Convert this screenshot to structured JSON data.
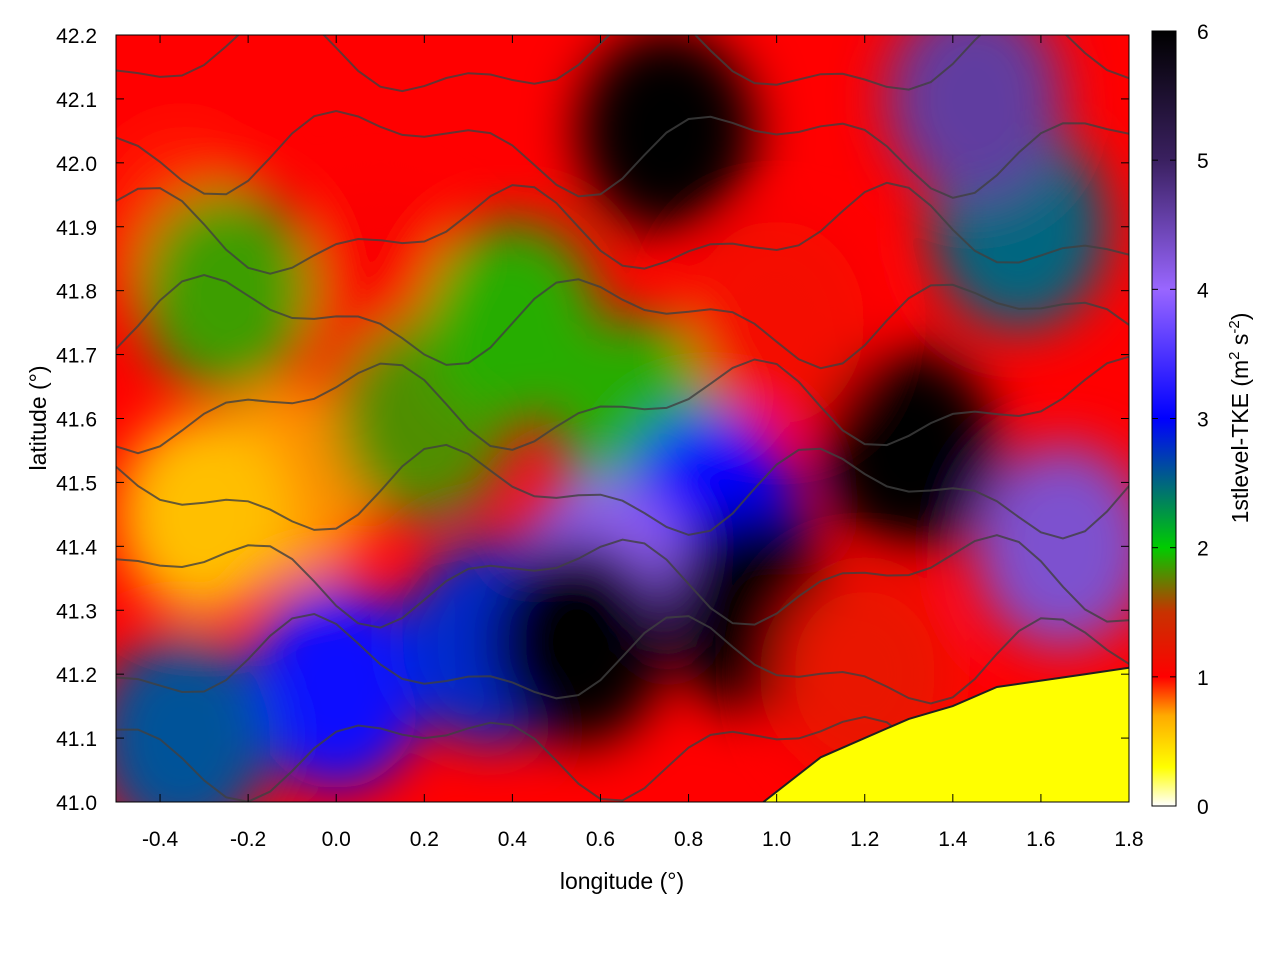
{
  "chart_data": {
    "type": "heatmap",
    "title": "",
    "xlabel": "longitude (°)",
    "ylabel": "latitude (°)",
    "colorbar_label_parts": [
      "1stlevel-TKE (m",
      "2",
      " s",
      "-2",
      ")"
    ],
    "xlim": [
      -0.5,
      1.8
    ],
    "ylim": [
      41.0,
      42.2
    ],
    "x_ticks": [
      -0.4,
      -0.2,
      0.0,
      0.2,
      0.4,
      0.6,
      0.8,
      1.0,
      1.2,
      1.4,
      1.6,
      1.8
    ],
    "x_tick_labels": [
      "-0.4",
      "-0.2",
      "0.0",
      "0.2",
      "0.4",
      "0.6",
      "0.8",
      "1.0",
      "1.2",
      "1.4",
      "1.6",
      "1.8"
    ],
    "y_ticks": [
      41.0,
      41.1,
      41.2,
      41.3,
      41.4,
      41.5,
      41.6,
      41.7,
      41.8,
      41.9,
      42.0,
      42.1,
      42.2
    ],
    "y_tick_labels": [
      "41.0",
      "41.1",
      "41.2",
      "41.3",
      "41.4",
      "41.5",
      "41.6",
      "41.7",
      "41.8",
      "41.9",
      "42.0",
      "42.1",
      "42.2"
    ],
    "colorbar_range": [
      0,
      6
    ],
    "colorbar_ticks": [
      0,
      1,
      2,
      3,
      4,
      5,
      6
    ],
    "colorbar_tick_labels": [
      "0",
      "1",
      "2",
      "3",
      "4",
      "5",
      "6"
    ],
    "colormap": [
      {
        "value": 0.0,
        "color": "#ffffff"
      },
      {
        "value": 0.3,
        "color": "#ffff00"
      },
      {
        "value": 0.7,
        "color": "#ffaa00"
      },
      {
        "value": 1.0,
        "color": "#ff0000"
      },
      {
        "value": 1.5,
        "color": "#c83200"
      },
      {
        "value": 2.0,
        "color": "#00cc00"
      },
      {
        "value": 3.0,
        "color": "#0000ff"
      },
      {
        "value": 4.0,
        "color": "#9966ff"
      },
      {
        "value": 5.0,
        "color": "#3a2060"
      },
      {
        "value": 6.0,
        "color": "#000000"
      }
    ],
    "grid": false,
    "contours": true,
    "contour_color": "#404040",
    "sea_color": "#ffff00",
    "field_regions": [
      {
        "lon": 0.1,
        "lat": 41.8,
        "tke": 1.05
      },
      {
        "lon": -0.35,
        "lat": 41.9,
        "tke": 0.95
      },
      {
        "lon": -0.1,
        "lat": 41.5,
        "tke": 0.75
      },
      {
        "lon": -0.3,
        "lat": 41.45,
        "tke": 0.6
      },
      {
        "lon": 0.2,
        "lat": 41.6,
        "tke": 1.8
      },
      {
        "lon": 0.4,
        "lat": 41.75,
        "tke": 1.9
      },
      {
        "lon": -0.25,
        "lat": 41.8,
        "tke": 1.85
      },
      {
        "lon": 0.7,
        "lat": 41.6,
        "tke": 1.9
      },
      {
        "lon": 0.85,
        "lat": 41.45,
        "tke": 3.0
      },
      {
        "lon": 0.6,
        "lat": 41.35,
        "tke": 4.1
      },
      {
        "lon": 0.0,
        "lat": 41.18,
        "tke": 3.1
      },
      {
        "lon": -0.35,
        "lat": 41.1,
        "tke": 2.6
      },
      {
        "lon": 0.35,
        "lat": 41.25,
        "tke": 2.8
      },
      {
        "lon": 0.55,
        "lat": 41.25,
        "tke": 6.0
      },
      {
        "lon": 0.95,
        "lat": 41.3,
        "tke": 6.0
      },
      {
        "lon": 0.75,
        "lat": 42.05,
        "tke": 6.0
      },
      {
        "lon": 1.3,
        "lat": 41.55,
        "tke": 6.0
      },
      {
        "lon": 1.55,
        "lat": 41.9,
        "tke": 2.5
      },
      {
        "lon": 1.65,
        "lat": 41.4,
        "tke": 4.3
      },
      {
        "lon": 1.45,
        "lat": 42.1,
        "tke": 4.6
      },
      {
        "lon": 1.0,
        "lat": 41.75,
        "tke": 1.1
      },
      {
        "lon": 1.2,
        "lat": 41.2,
        "tke": 1.2
      }
    ],
    "coastline": [
      [
        0.97,
        41.0
      ],
      [
        1.1,
        41.07
      ],
      [
        1.2,
        41.1
      ],
      [
        1.3,
        41.13
      ],
      [
        1.4,
        41.15
      ],
      [
        1.5,
        41.18
      ],
      [
        1.6,
        41.19
      ],
      [
        1.7,
        41.2
      ],
      [
        1.8,
        41.21
      ]
    ]
  }
}
